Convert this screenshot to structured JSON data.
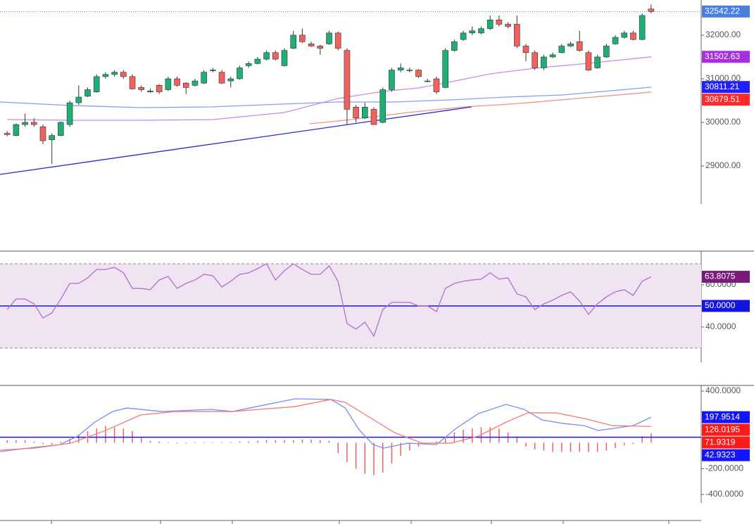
{
  "chart_data": [
    {
      "type": "candlestick",
      "xlim": [
        -0.8,
        77.6
      ],
      "ylim": [
        27081,
        32806
      ],
      "yticks": [
        {
          "value": 29000,
          "label": "29000.00"
        },
        {
          "value": 30000,
          "label": "30000.00"
        },
        {
          "value": 31000,
          "label": "31000.00"
        },
        {
          "value": 32000,
          "label": "32000.00"
        }
      ],
      "up_color": "#1fae74",
      "down_color": "#f0625d",
      "open": [
        29750,
        29700,
        29950,
        30000,
        29900,
        29600,
        29700,
        29950,
        30450,
        30600,
        30700,
        31050,
        31100,
        31150,
        31050,
        30800,
        30700,
        30850,
        30750,
        31000,
        30900,
        30850,
        30900,
        31200,
        31150,
        30950,
        31000,
        31300,
        31350,
        31450,
        31600,
        31300,
        31700,
        32000,
        31800,
        31750,
        31800,
        32050,
        31650,
        30350,
        30100,
        30300,
        30000,
        30750,
        31200,
        31200,
        31200,
        30950,
        31000,
        30800,
        31650,
        31900,
        32050,
        32050,
        32150,
        32350,
        32250,
        32250,
        31750,
        31600,
        31250,
        31500,
        31600,
        31750,
        31850,
        31600,
        31250,
        31500,
        31800,
        31950,
        32050,
        31900,
        32600
      ],
      "high": [
        29800,
        29980,
        30200,
        30100,
        29950,
        29750,
        30020,
        30500,
        30850,
        30800,
        31100,
        31150,
        31200,
        31200,
        31100,
        30850,
        30780,
        30880,
        31050,
        31050,
        30920,
        31000,
        31200,
        31250,
        31200,
        31050,
        31300,
        31400,
        31500,
        31650,
        31650,
        31700,
        32100,
        32150,
        31850,
        31780,
        32100,
        32080,
        31700,
        30400,
        30450,
        30350,
        30800,
        31250,
        31350,
        31260,
        31220,
        31000,
        31050,
        31700,
        31900,
        32100,
        32200,
        32200,
        32450,
        32450,
        32300,
        32450,
        31800,
        31650,
        31550,
        31600,
        31800,
        31850,
        32100,
        31650,
        31550,
        31800,
        32000,
        32100,
        32100,
        32500,
        32700
      ],
      "low": [
        29680,
        29680,
        29900,
        29900,
        29500,
        29050,
        29680,
        29900,
        30400,
        30580,
        30680,
        31000,
        31050,
        31000,
        30750,
        30700,
        30680,
        30650,
        30720,
        30820,
        30650,
        30820,
        30880,
        31150,
        30880,
        30800,
        30980,
        31250,
        31330,
        31420,
        31420,
        31280,
        31680,
        31820,
        31730,
        31550,
        31780,
        31650,
        29950,
        30000,
        30080,
        29950,
        29980,
        30700,
        31150,
        31150,
        31020,
        30920,
        30650,
        30780,
        31620,
        31870,
        32000,
        32020,
        32120,
        32200,
        32150,
        31700,
        31400,
        31200,
        31200,
        31480,
        31580,
        31730,
        31620,
        31180,
        31230,
        31480,
        31780,
        31920,
        31880,
        31880,
        32500
      ],
      "close": [
        29720,
        29950,
        30000,
        29950,
        29580,
        29700,
        30000,
        30450,
        30580,
        30750,
        31050,
        31100,
        31150,
        31050,
        30770,
        30750,
        30720,
        30700,
        31000,
        30850,
        30800,
        30950,
        31150,
        31200,
        30900,
        31000,
        31250,
        31350,
        31450,
        31600,
        31450,
        31650,
        32000,
        31850,
        31750,
        31700,
        32050,
        31700,
        30300,
        30100,
        30350,
        29950,
        30750,
        31200,
        31250,
        31200,
        31050,
        30950,
        30700,
        31650,
        31850,
        32050,
        32100,
        32150,
        32350,
        32250,
        32200,
        31750,
        31600,
        31250,
        31500,
        31550,
        31750,
        31800,
        31650,
        31200,
        31500,
        31750,
        31950,
        32050,
        31900,
        32450,
        32542.22
      ],
      "series": [
        {
          "color": "#c08cf0",
          "x": [
            0,
            7,
            15,
            23,
            31,
            37,
            42,
            46,
            49,
            54,
            59,
            65,
            72
          ],
          "values": [
            30065,
            30048,
            30048,
            30065,
            30226,
            30548,
            30710,
            30790,
            30903,
            31113,
            31242,
            31355,
            31503
          ]
        },
        {
          "color": "#8c9cf2",
          "x": [
            -0.8,
            7.1,
            15,
            22.8,
            30.7,
            37,
            43.3,
            49.6,
            55.8,
            62.1,
            72
          ],
          "values": [
            30468,
            30387,
            30339,
            30355,
            30419,
            30468,
            30468,
            30516,
            30581,
            30629,
            30806
          ]
        },
        {
          "color": "#f29090",
          "x": [
            33.8,
            38.5,
            44.8,
            51.1,
            57.4,
            63.7,
            72
          ],
          "values": [
            29968,
            30065,
            30226,
            30355,
            30435,
            30548,
            30694
          ]
        },
        {
          "color": "#2a2ad0",
          "x": [
            -0.8,
            51.9
          ],
          "values": [
            28806,
            30355
          ]
        }
      ],
      "markers": [
        {
          "value": 32542.22,
          "label": "32542.22",
          "color": "#4a7fe0",
          "line": "dotted"
        },
        {
          "value": 31502.63,
          "label": "31502.63",
          "color": "#a62ee0"
        },
        {
          "value": 30811.21,
          "label": "30811.21",
          "color": "#1f1fff"
        },
        {
          "value": 30679.51,
          "label": "30679.51",
          "color": "#ff2a2a"
        }
      ]
    },
    {
      "type": "line",
      "xlim": [
        -0.8,
        77.6
      ],
      "ylim": [
        13.3,
        76
      ],
      "yticks": [
        {
          "value": 40,
          "label": "40.0000"
        },
        {
          "value": 60,
          "label": "60.0000"
        }
      ],
      "band": [
        30,
        70
      ],
      "band_color": "#f1e4f2",
      "series": [
        {
          "color": "#b070c8",
          "values": [
            48.3,
            53.3,
            53.3,
            51,
            44.3,
            46.7,
            53.3,
            60.7,
            60.7,
            63.3,
            67.3,
            67.3,
            68.3,
            65.7,
            58.3,
            58.3,
            57.7,
            62.3,
            64,
            58.3,
            60.7,
            62.3,
            65,
            64.3,
            59,
            61.7,
            65,
            65.7,
            67.7,
            70,
            62.3,
            66.7,
            70,
            67.3,
            65,
            65,
            69,
            61.7,
            41.7,
            39,
            42.3,
            35.7,
            48.3,
            51.7,
            51.7,
            51.7,
            50,
            50,
            47.3,
            58.3,
            60.7,
            61.7,
            62.3,
            62.7,
            65.7,
            62.7,
            63.3,
            55.7,
            54.3,
            48.3,
            51,
            52.7,
            55,
            56.7,
            52.3,
            46,
            51,
            54.3,
            56.7,
            57.7,
            55,
            61.7,
            63.8075
          ]
        }
      ],
      "markers": [
        {
          "value": 63.8075,
          "label": "63.8075",
          "color": "#7b1a7b"
        },
        {
          "value": 50,
          "label": "50.0000",
          "color": "#1414e0",
          "line": "solid"
        }
      ]
    },
    {
      "type": "macd",
      "xlim": [
        -0.8,
        77.6
      ],
      "ylim": [
        -601,
        443.5
      ],
      "yticks": [
        {
          "value": 400,
          "label": "400.0000"
        },
        {
          "value": -200,
          "label": "-200.0000"
        },
        {
          "value": -400,
          "label": "-400.0000"
        }
      ],
      "histogram": {
        "color": "#f06060",
        "values": [
          20,
          20,
          20,
          10,
          -10,
          -15,
          10,
          30,
          60,
          90,
          110,
          130,
          120,
          110,
          90,
          40,
          15,
          10,
          5,
          -5,
          -5,
          5,
          5,
          5,
          5,
          5,
          10,
          10,
          15,
          20,
          20,
          20,
          20,
          25,
          25,
          20,
          15,
          -80,
          -150,
          -200,
          -240,
          -250,
          -230,
          -160,
          -100,
          -60,
          -30,
          -10,
          10,
          40,
          80,
          100,
          110,
          120,
          120,
          110,
          80,
          40,
          -30,
          -50,
          -60,
          -70,
          -70,
          -70,
          -70,
          -70,
          -70,
          -60,
          -40,
          -20,
          -10,
          50,
          71.9319
        ]
      },
      "series": [
        {
          "color": "#7b8cf5",
          "x": [
            -0.8,
            3.1,
            5.9,
            7.9,
            9.8,
            11.8,
            13.4,
            17.3,
            22.8,
            25.2,
            29.1,
            32.2,
            36.2,
            37.8,
            39.3,
            40.9,
            42.1,
            44.8,
            48,
            50.3,
            52.7,
            55.8,
            57.8,
            59.8,
            62.1,
            64.5,
            66.1,
            68.4,
            70,
            72
          ],
          "values": [
            -68,
            -35,
            -14,
            52,
            160,
            242,
            269,
            242,
            258,
            242,
            297,
            340,
            335,
            269,
            106,
            -14,
            -41,
            -3,
            -14,
            117,
            226,
            297,
            258,
            177,
            150,
            133,
            95,
            117,
            133,
            197.9514
          ]
        },
        {
          "color": "#f47a7a",
          "x": [
            -0.8,
            3.1,
            7.1,
            11,
            14.9,
            18.9,
            25.2,
            32.2,
            36.2,
            37.8,
            40.1,
            43.3,
            46.4,
            49.6,
            52.7,
            55.8,
            58.2,
            61.4,
            64.5,
            67.7,
            72
          ],
          "values": [
            -57,
            -41,
            -3,
            95,
            215,
            242,
            242,
            280,
            335,
            313,
            215,
            79,
            -3,
            -3,
            52,
            160,
            231,
            231,
            188,
            133,
            126.0195
          ]
        }
      ],
      "markers": [
        {
          "value": 197.9514,
          "label": "197.9514",
          "color": "#1414ff"
        },
        {
          "value": 126.0195,
          "label": "126.0195",
          "color": "#ff1a1a"
        },
        {
          "value": 71.9319,
          "label": "71.9319",
          "color": "#ff1a1a"
        },
        {
          "value": 42.9323,
          "label": "42.9323",
          "color": "#1414ff",
          "line": "solid"
        }
      ]
    }
  ]
}
